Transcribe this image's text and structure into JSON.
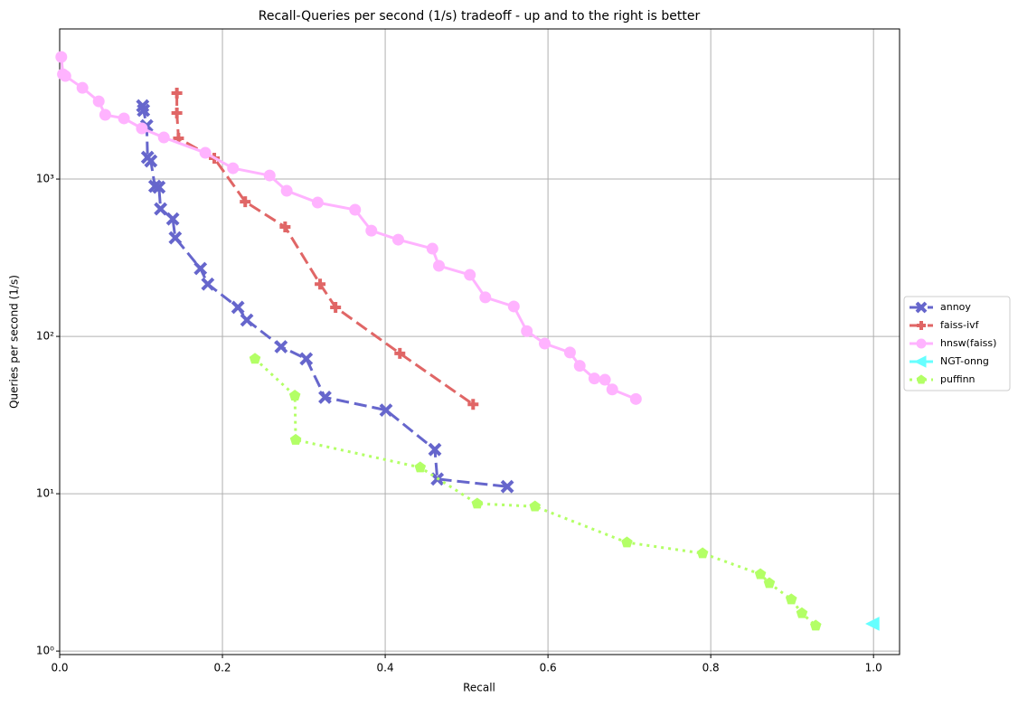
{
  "chart_data": {
    "type": "line",
    "title": "Recall-Queries per second (1/s) tradeoff - up and to the right is better",
    "x_label": "Recall",
    "y_label": "Queries per second (1/s)",
    "xlim": [
      0,
      1.032
    ],
    "ylim": [
      0.95,
      9000
    ],
    "y_log": true,
    "grid": true,
    "legend": "right",
    "xticks": [
      {
        "value": 0,
        "label": "0.0"
      },
      0.2,
      0.4,
      0.6,
      0.8,
      {
        "value": 1,
        "label": "1.0"
      }
    ],
    "yticks": [
      {
        "value": 1,
        "label": "10⁰"
      },
      {
        "value": 10,
        "label": "10¹"
      },
      {
        "value": 100,
        "label": "10²"
      },
      {
        "value": 1000,
        "label": "10³"
      }
    ],
    "series": [
      {
        "name": "annoy",
        "color": "#6666cc",
        "dash": "dashed",
        "marker": "x",
        "x": [
          0.102,
          0.103,
          0.107,
          0.108,
          0.112,
          0.117,
          0.122,
          0.124,
          0.139,
          0.142,
          0.173,
          0.182,
          0.219,
          0.23,
          0.272,
          0.303,
          0.326,
          0.401,
          0.461,
          0.464,
          0.55
        ],
        "values": [
          2920,
          2735,
          2183,
          1373,
          1303,
          900,
          888,
          646,
          558,
          423,
          270,
          215,
          153,
          127,
          86,
          72,
          41,
          34,
          19.1,
          12.4,
          11.1
        ]
      },
      {
        "name": "faiss-ivf",
        "color": "#e06666",
        "dash": "dashed",
        "marker": "plus",
        "x": [
          0.144,
          0.144,
          0.146,
          0.19,
          0.228,
          0.277,
          0.32,
          0.339,
          0.418,
          0.508
        ],
        "values": [
          3516,
          2630,
          1815,
          1356,
          718,
          496,
          215,
          153,
          78,
          37
        ]
      },
      {
        "name": "hnsw(faiss)",
        "color": "#ffb3ff",
        "dash": "solid",
        "marker": "circle",
        "x": [
          0.002,
          0.004,
          0.007,
          0.028,
          0.048,
          0.056,
          0.079,
          0.101,
          0.128,
          0.179,
          0.213,
          0.258,
          0.279,
          0.317,
          0.363,
          0.383,
          0.416,
          0.458,
          0.466,
          0.504,
          0.523,
          0.558,
          0.574,
          0.596,
          0.627,
          0.639,
          0.657,
          0.67,
          0.679,
          0.708
        ],
        "values": [
          5970,
          4640,
          4520,
          3800,
          3120,
          2560,
          2430,
          2100,
          1838,
          1468,
          1172,
          1054,
          842,
          709,
          638,
          470,
          412,
          361,
          281,
          246,
          177,
          155,
          108,
          90,
          79,
          65,
          54,
          53,
          46,
          40
        ]
      },
      {
        "name": "NGT-onng",
        "color": "#66ffff",
        "dash": "solid",
        "marker": "triangle-left",
        "x": [
          1
        ],
        "values": [
          1.49
        ]
      },
      {
        "name": "puffinn",
        "color": "#b3ff66",
        "dash": "dotted",
        "marker": "pentagon",
        "x": [
          0.24,
          0.289,
          0.29,
          0.443,
          0.513,
          0.584,
          0.697,
          0.79,
          0.861,
          0.872,
          0.899,
          0.912,
          0.929
        ],
        "values": [
          72,
          42,
          22,
          14.7,
          8.65,
          8.3,
          4.9,
          4.18,
          3.08,
          2.7,
          2.13,
          1.74,
          1.45
        ]
      }
    ]
  }
}
